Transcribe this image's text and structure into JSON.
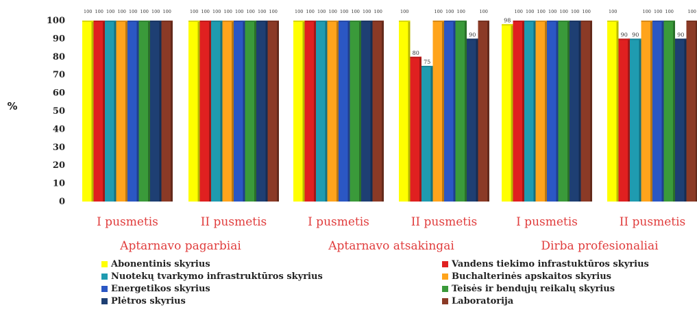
{
  "chart_data": {
    "type": "bar",
    "ylabel": "%",
    "ylim": [
      0,
      100
    ],
    "yticks": [
      0,
      10,
      20,
      30,
      40,
      50,
      60,
      70,
      80,
      90,
      100
    ],
    "groups": [
      {
        "label": "Aptarnavo pagarbiai",
        "periods": [
          "I pusmetis",
          "II pusmetis"
        ]
      },
      {
        "label": "Aptarnavo atsakingai",
        "periods": [
          "I pusmetis",
          "II pusmetis"
        ]
      },
      {
        "label": "Dirba profesionaliai",
        "periods": [
          "I pusmetis",
          "II pusmetis"
        ]
      }
    ],
    "categories": [
      "Aptarnavo pagarbiai – I pusmetis",
      "Aptarnavo pagarbiai – II pusmetis",
      "Aptarnavo atsakingai – I pusmetis",
      "Aptarnavo atsakingai – II pusmetis",
      "Dirba profesionaliai – I pusmetis",
      "Dirba profesionaliai – II pusmetis"
    ],
    "series": [
      {
        "name": "Abonentinis skyrius",
        "color": "#ffff00",
        "values": [
          100,
          100,
          100,
          100,
          98,
          100
        ]
      },
      {
        "name": "Vandens tiekimo infrastuktūros skyrius",
        "color": "#e02020",
        "values": [
          100,
          100,
          100,
          80,
          100,
          90
        ]
      },
      {
        "name": "Nuotekų tvarkymo infrastruktūros skyrius",
        "color": "#1f9bb0",
        "values": [
          100,
          100,
          100,
          75,
          100,
          90
        ]
      },
      {
        "name": "Buchalterinės apskaitos skyrius",
        "color": "#ffa41c",
        "values": [
          100,
          100,
          100,
          100,
          100,
          100
        ]
      },
      {
        "name": "Energetikos skyrius",
        "color": "#2b57c4",
        "values": [
          100,
          100,
          100,
          100,
          100,
          100
        ]
      },
      {
        "name": "Teisės ir bendųjų reikalų skyrius",
        "color": "#3a9a3a",
        "values": [
          100,
          100,
          100,
          100,
          100,
          100
        ]
      },
      {
        "name": "Plėtros skyrius",
        "color": "#1e3f73",
        "values": [
          100,
          100,
          100,
          90,
          100,
          90
        ]
      },
      {
        "name": "Laboratorija",
        "color": "#8b3a26",
        "values": [
          100,
          100,
          100,
          100,
          100,
          100
        ]
      }
    ],
    "legend_position": "bottom",
    "grid": false
  }
}
